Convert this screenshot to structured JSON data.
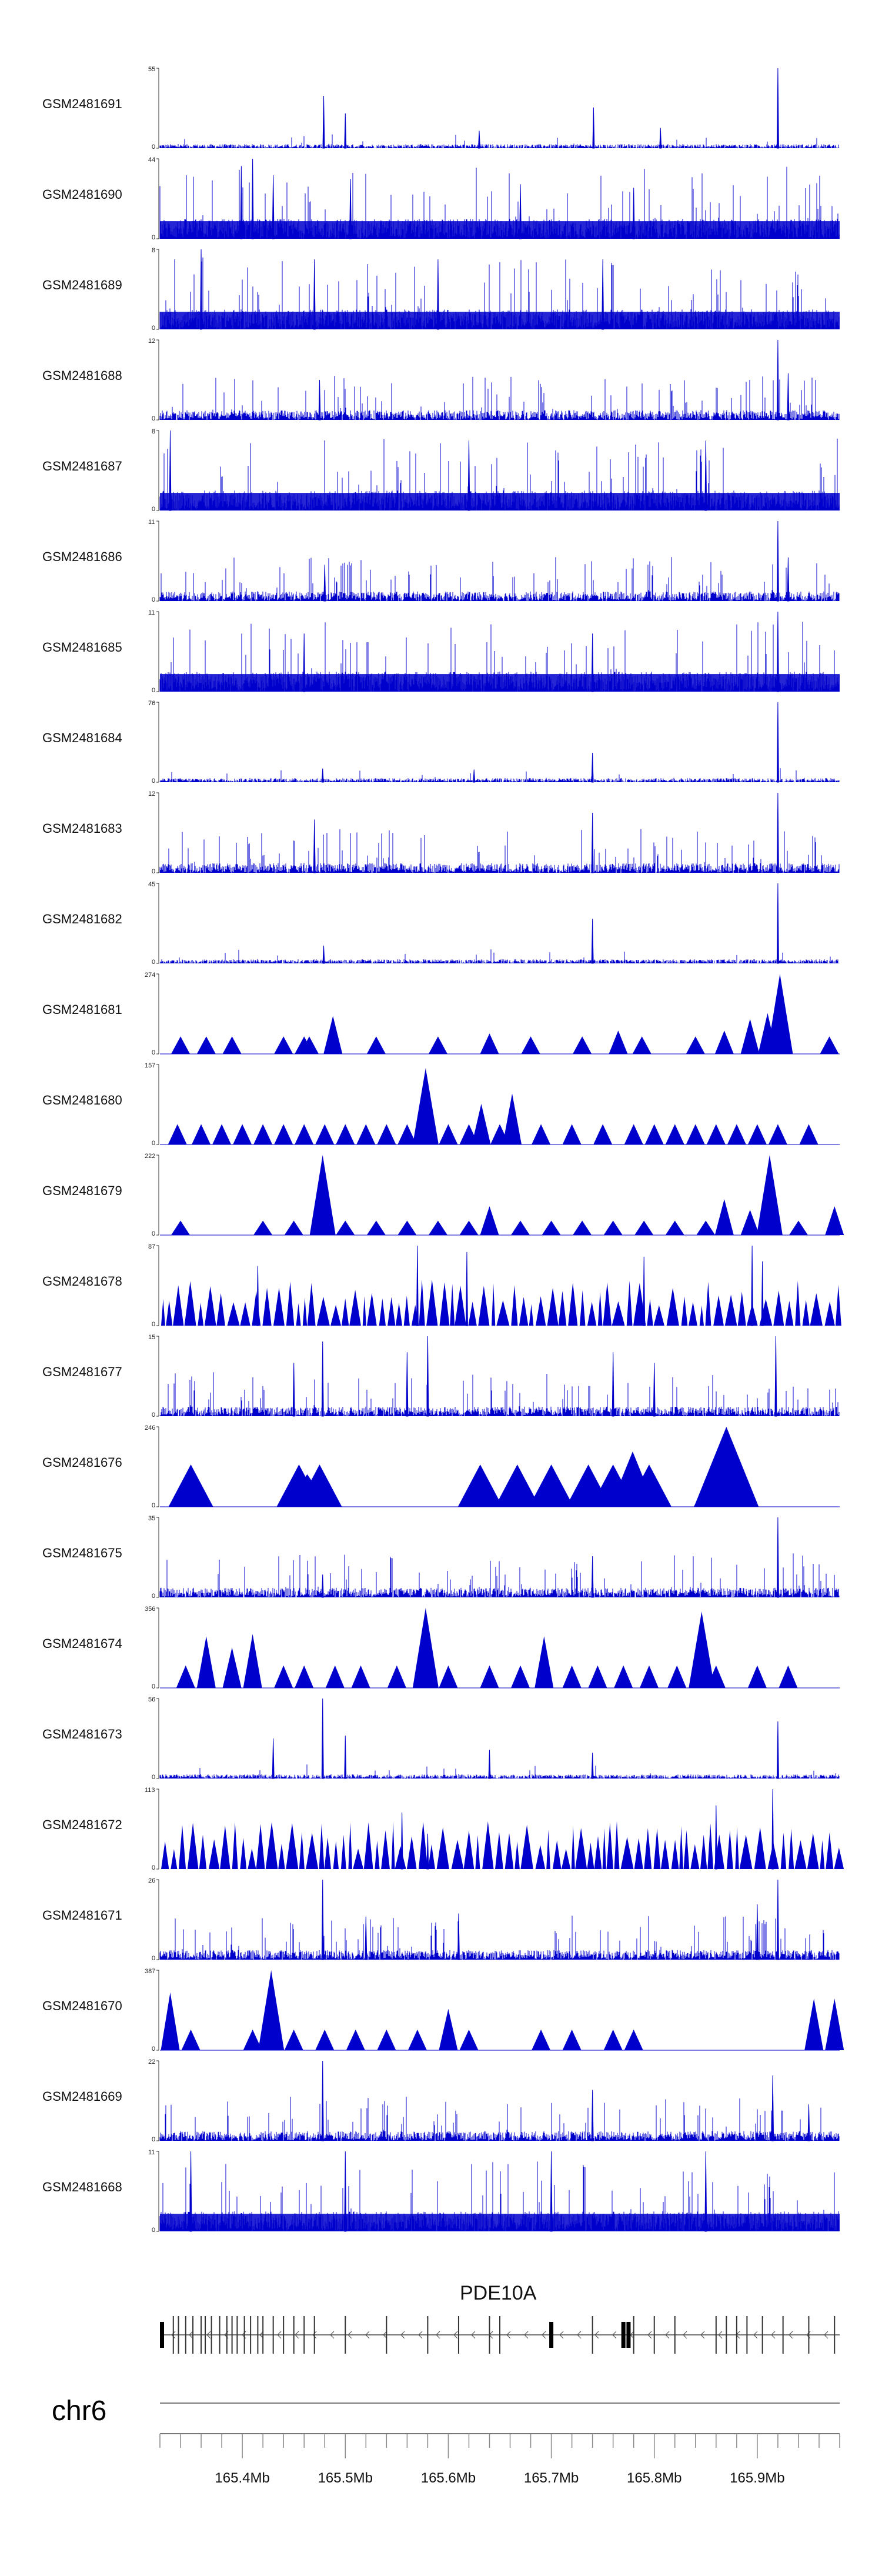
{
  "chart_data": {
    "type": "area",
    "title": "",
    "chromosome": "chr6",
    "gene": "PDE10A",
    "x_unit": "Mb",
    "xlim": [
      165.32,
      165.98
    ],
    "x_ticks": [
      165.4,
      165.5,
      165.6,
      165.7,
      165.8,
      165.9
    ],
    "x_tick_labels": [
      "165.4Mb",
      "165.5Mb",
      "165.6Mb",
      "165.7Mb",
      "165.8Mb",
      "165.9Mb"
    ],
    "tracks": [
      {
        "name": "GSM2481691",
        "max": 55,
        "max_label": "55",
        "zero_label": "0",
        "style": "sparse",
        "peaks": [
          [
            165.479,
            36
          ],
          [
            165.5,
            24
          ],
          [
            165.63,
            12
          ],
          [
            165.741,
            28
          ],
          [
            165.806,
            14
          ],
          [
            165.92,
            55
          ]
        ]
      },
      {
        "name": "GSM2481690",
        "max": 44,
        "max_label": "44",
        "zero_label": "0",
        "style": "dense",
        "peaks": [
          [
            165.399,
            40
          ],
          [
            165.41,
            44
          ],
          [
            165.43,
            35
          ],
          [
            165.505,
            33
          ],
          [
            165.67,
            30
          ],
          [
            165.78,
            28
          ]
        ]
      },
      {
        "name": "GSM2481689",
        "max": 8,
        "max_label": "8",
        "zero_label": "0",
        "style": "dense",
        "peaks": [
          [
            165.36,
            8
          ],
          [
            165.47,
            7
          ],
          [
            165.59,
            7
          ],
          [
            165.75,
            7
          ]
        ]
      },
      {
        "name": "GSM2481688",
        "max": 12,
        "max_label": "12",
        "zero_label": "0",
        "style": "medium",
        "peaks": [
          [
            165.475,
            6
          ],
          [
            165.92,
            12
          ],
          [
            165.93,
            7
          ]
        ]
      },
      {
        "name": "GSM2481687",
        "max": 8,
        "max_label": "8",
        "zero_label": "0",
        "style": "dense",
        "peaks": [
          [
            165.33,
            8
          ],
          [
            165.62,
            7
          ],
          [
            165.85,
            7
          ]
        ]
      },
      {
        "name": "GSM2481686",
        "max": 11,
        "max_label": "11",
        "zero_label": "0",
        "style": "medium",
        "peaks": [
          [
            165.48,
            5
          ],
          [
            165.92,
            11
          ],
          [
            165.93,
            6
          ]
        ]
      },
      {
        "name": "GSM2481685",
        "max": 11,
        "max_label": "11",
        "zero_label": "0",
        "style": "dense",
        "peaks": [
          [
            165.46,
            8
          ],
          [
            165.74,
            8
          ],
          [
            165.92,
            11
          ]
        ]
      },
      {
        "name": "GSM2481684",
        "max": 76,
        "max_label": "76",
        "zero_label": "0",
        "style": "sparse",
        "peaks": [
          [
            165.478,
            13
          ],
          [
            165.625,
            12
          ],
          [
            165.74,
            28
          ],
          [
            165.92,
            76
          ]
        ]
      },
      {
        "name": "GSM2481683",
        "max": 12,
        "max_label": "12",
        "zero_label": "0",
        "style": "medium",
        "peaks": [
          [
            165.47,
            8
          ],
          [
            165.74,
            9
          ],
          [
            165.92,
            12
          ]
        ]
      },
      {
        "name": "GSM2481682",
        "max": 45,
        "max_label": "45",
        "zero_label": "0",
        "style": "sparse",
        "peaks": [
          [
            165.479,
            10
          ],
          [
            165.74,
            25
          ],
          [
            165.92,
            45
          ]
        ]
      },
      {
        "name": "GSM2481681",
        "max": 274,
        "max_label": "274",
        "zero_label": "0",
        "style": "triangles",
        "peaks": [
          [
            165.34,
            60
          ],
          [
            165.365,
            60
          ],
          [
            165.39,
            60
          ],
          [
            165.44,
            60
          ],
          [
            165.465,
            60
          ],
          [
            165.488,
            130
          ],
          [
            165.46,
            60
          ],
          [
            165.53,
            60
          ],
          [
            165.59,
            60
          ],
          [
            165.64,
            70
          ],
          [
            165.68,
            60
          ],
          [
            165.73,
            60
          ],
          [
            165.765,
            80
          ],
          [
            165.788,
            60
          ],
          [
            165.84,
            60
          ],
          [
            165.868,
            80
          ],
          [
            165.893,
            120
          ],
          [
            165.91,
            140
          ],
          [
            165.922,
            274
          ],
          [
            165.97,
            60
          ]
        ]
      },
      {
        "name": "GSM2481680",
        "max": 157,
        "max_label": "157",
        "zero_label": "0",
        "style": "triangles",
        "peaks": [
          [
            165.337,
            40
          ],
          [
            165.36,
            40
          ],
          [
            165.38,
            40
          ],
          [
            165.4,
            40
          ],
          [
            165.42,
            40
          ],
          [
            165.44,
            40
          ],
          [
            165.46,
            40
          ],
          [
            165.48,
            40
          ],
          [
            165.5,
            40
          ],
          [
            165.52,
            40
          ],
          [
            165.54,
            40
          ],
          [
            165.56,
            40
          ],
          [
            165.578,
            150
          ],
          [
            165.6,
            40
          ],
          [
            165.62,
            40
          ],
          [
            165.632,
            80
          ],
          [
            165.65,
            40
          ],
          [
            165.662,
            100
          ],
          [
            165.69,
            40
          ],
          [
            165.72,
            40
          ],
          [
            165.75,
            40
          ],
          [
            165.78,
            40
          ],
          [
            165.8,
            40
          ],
          [
            165.82,
            40
          ],
          [
            165.84,
            40
          ],
          [
            165.86,
            40
          ],
          [
            165.88,
            40
          ],
          [
            165.9,
            40
          ],
          [
            165.92,
            40
          ],
          [
            165.95,
            40
          ]
        ]
      },
      {
        "name": "GSM2481679",
        "max": 222,
        "max_label": "222",
        "zero_label": "0",
        "style": "triangles",
        "peaks": [
          [
            165.34,
            40
          ],
          [
            165.42,
            40
          ],
          [
            165.45,
            40
          ],
          [
            165.478,
            222
          ],
          [
            165.5,
            40
          ],
          [
            165.53,
            40
          ],
          [
            165.56,
            40
          ],
          [
            165.59,
            40
          ],
          [
            165.62,
            40
          ],
          [
            165.64,
            80
          ],
          [
            165.67,
            40
          ],
          [
            165.7,
            40
          ],
          [
            165.73,
            40
          ],
          [
            165.76,
            40
          ],
          [
            165.79,
            40
          ],
          [
            165.82,
            40
          ],
          [
            165.85,
            40
          ],
          [
            165.868,
            100
          ],
          [
            165.893,
            70
          ],
          [
            165.912,
            222
          ],
          [
            165.94,
            40
          ],
          [
            165.975,
            80
          ]
        ]
      },
      {
        "name": "GSM2481678",
        "max": 87,
        "max_label": "87",
        "zero_label": "0",
        "style": "dense-triangles",
        "peaks": [
          [
            165.415,
            65
          ],
          [
            165.57,
            87
          ],
          [
            165.618,
            80
          ],
          [
            165.79,
            75
          ],
          [
            165.895,
            87
          ],
          [
            165.905,
            70
          ]
        ]
      },
      {
        "name": "GSM2481677",
        "max": 15,
        "max_label": "15",
        "zero_label": "0",
        "style": "medium",
        "peaks": [
          [
            165.45,
            10
          ],
          [
            165.478,
            14
          ],
          [
            165.56,
            12
          ],
          [
            165.58,
            15
          ],
          [
            165.76,
            12
          ],
          [
            165.8,
            10
          ],
          [
            165.918,
            15
          ]
        ]
      },
      {
        "name": "GSM2481676",
        "max": 246,
        "max_label": "246",
        "zero_label": "0",
        "style": "big-triangles",
        "peaks": [
          [
            165.35,
            130
          ],
          [
            165.455,
            130
          ],
          [
            165.463,
            100
          ],
          [
            165.475,
            130
          ],
          [
            165.631,
            130
          ],
          [
            165.667,
            130
          ],
          [
            165.7,
            130
          ],
          [
            165.736,
            130
          ],
          [
            165.76,
            130
          ],
          [
            165.779,
            170
          ],
          [
            165.795,
            130
          ],
          [
            165.87,
            246
          ],
          [
            165.86,
            130
          ]
        ]
      },
      {
        "name": "GSM2481675",
        "max": 35,
        "max_label": "35",
        "zero_label": "0",
        "style": "medium",
        "peaks": [
          [
            165.478,
            10
          ],
          [
            165.74,
            18
          ],
          [
            165.92,
            35
          ]
        ]
      },
      {
        "name": "GSM2481674",
        "max": 356,
        "max_label": "356",
        "zero_label": "0",
        "style": "triangles",
        "peaks": [
          [
            165.345,
            100
          ],
          [
            165.365,
            230
          ],
          [
            165.39,
            180
          ],
          [
            165.41,
            240
          ],
          [
            165.44,
            100
          ],
          [
            165.46,
            100
          ],
          [
            165.49,
            100
          ],
          [
            165.515,
            100
          ],
          [
            165.55,
            100
          ],
          [
            165.578,
            356
          ],
          [
            165.6,
            100
          ],
          [
            165.64,
            100
          ],
          [
            165.67,
            100
          ],
          [
            165.693,
            230
          ],
          [
            165.72,
            100
          ],
          [
            165.745,
            100
          ],
          [
            165.77,
            100
          ],
          [
            165.795,
            100
          ],
          [
            165.822,
            100
          ],
          [
            165.846,
            340
          ],
          [
            165.86,
            100
          ],
          [
            165.9,
            100
          ],
          [
            165.93,
            100
          ]
        ]
      },
      {
        "name": "GSM2481673",
        "max": 56,
        "max_label": "56",
        "zero_label": "0",
        "style": "sparse",
        "peaks": [
          [
            165.43,
            28
          ],
          [
            165.478,
            56
          ],
          [
            165.5,
            30
          ],
          [
            165.64,
            20
          ],
          [
            165.74,
            18
          ],
          [
            165.92,
            40
          ]
        ]
      },
      {
        "name": "GSM2481672",
        "max": 113,
        "max_label": "113",
        "zero_label": "0",
        "style": "dense-triangles",
        "peaks": [
          [
            165.555,
            80
          ],
          [
            165.58,
            50
          ],
          [
            165.86,
            90
          ],
          [
            165.915,
            113
          ]
        ]
      },
      {
        "name": "GSM2481671",
        "max": 26,
        "max_label": "26",
        "zero_label": "0",
        "style": "medium",
        "peaks": [
          [
            165.478,
            26
          ],
          [
            165.52,
            14
          ],
          [
            165.61,
            15
          ],
          [
            165.9,
            18
          ],
          [
            165.92,
            26
          ]
        ]
      },
      {
        "name": "GSM2481670",
        "max": 387,
        "max_label": "387",
        "zero_label": "0",
        "style": "triangles",
        "peaks": [
          [
            165.33,
            280
          ],
          [
            165.35,
            100
          ],
          [
            165.41,
            100
          ],
          [
            165.428,
            387
          ],
          [
            165.45,
            100
          ],
          [
            165.48,
            100
          ],
          [
            165.51,
            100
          ],
          [
            165.54,
            100
          ],
          [
            165.57,
            100
          ],
          [
            165.6,
            200
          ],
          [
            165.62,
            100
          ],
          [
            165.69,
            100
          ],
          [
            165.72,
            100
          ],
          [
            165.76,
            100
          ],
          [
            165.78,
            100
          ],
          [
            165.955,
            250
          ],
          [
            165.975,
            250
          ]
        ]
      },
      {
        "name": "GSM2481669",
        "max": 22,
        "max_label": "22",
        "zero_label": "0",
        "style": "medium",
        "peaks": [
          [
            165.478,
            22
          ],
          [
            165.74,
            14
          ],
          [
            165.915,
            18
          ],
          [
            165.95,
            10
          ]
        ]
      },
      {
        "name": "GSM2481668",
        "max": 11,
        "max_label": "11",
        "zero_label": "0",
        "style": "dense",
        "peaks": [
          [
            165.35,
            11
          ],
          [
            165.5,
            11
          ],
          [
            165.7,
            11
          ],
          [
            165.85,
            11
          ]
        ]
      }
    ],
    "gene_model": {
      "strand": "-",
      "start": 165.32,
      "end": 165.98,
      "exons": [
        165.322,
        165.333,
        165.338,
        165.345,
        165.352,
        165.36,
        165.364,
        165.37,
        165.378,
        165.385,
        165.39,
        165.395,
        165.402,
        165.408,
        165.415,
        165.42,
        165.43,
        165.44,
        165.45,
        165.46,
        165.47,
        165.5,
        165.54,
        165.58,
        165.61,
        165.64,
        165.65,
        165.7,
        165.74,
        165.77,
        165.775,
        165.78,
        165.8,
        165.82,
        165.86,
        165.87,
        165.88,
        165.89,
        165.905,
        165.925,
        165.95,
        165.975
      ]
    }
  }
}
